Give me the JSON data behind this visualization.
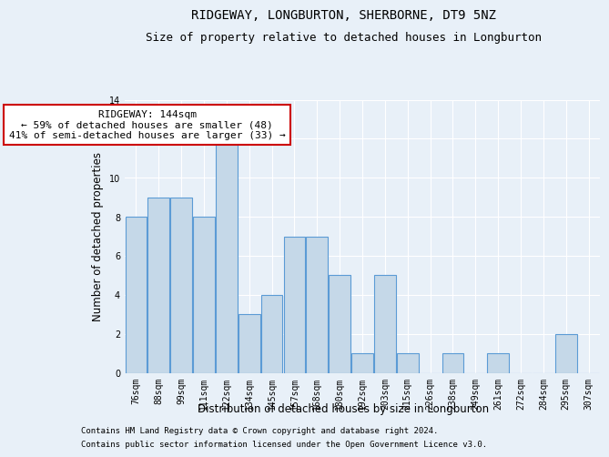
{
  "title": "RIDGEWAY, LONGBURTON, SHERBORNE, DT9 5NZ",
  "subtitle": "Size of property relative to detached houses in Longburton",
  "xlabel": "Distribution of detached houses by size in Longburton",
  "ylabel": "Number of detached properties",
  "footnote1": "Contains HM Land Registry data © Crown copyright and database right 2024.",
  "footnote2": "Contains public sector information licensed under the Open Government Licence v3.0.",
  "annotation_title": "RIDGEWAY: 144sqm",
  "annotation_line1": "← 59% of detached houses are smaller (48)",
  "annotation_line2": "41% of semi-detached houses are larger (33) →",
  "highlight_index": 5,
  "categories": [
    "76sqm",
    "88sqm",
    "99sqm",
    "111sqm",
    "122sqm",
    "134sqm",
    "145sqm",
    "157sqm",
    "168sqm",
    "180sqm",
    "192sqm",
    "203sqm",
    "215sqm",
    "226sqm",
    "238sqm",
    "249sqm",
    "261sqm",
    "272sqm",
    "284sqm",
    "295sqm",
    "307sqm"
  ],
  "values": [
    8,
    9,
    9,
    8,
    12,
    3,
    4,
    7,
    7,
    5,
    1,
    5,
    1,
    0,
    1,
    0,
    1,
    0,
    0,
    2,
    0
  ],
  "bar_color": "#c5d8e8",
  "bar_edge_color": "#5b9bd5",
  "ylim": [
    0,
    14
  ],
  "yticks": [
    0,
    2,
    4,
    6,
    8,
    10,
    12,
    14
  ],
  "background_color": "#e8f0f8",
  "plot_bg_color": "#e8f0f8",
  "grid_color": "#ffffff",
  "annotation_box_color": "#ffffff",
  "annotation_box_edge": "#cc0000",
  "title_fontsize": 10,
  "subtitle_fontsize": 9,
  "axis_label_fontsize": 8.5,
  "tick_fontsize": 7,
  "annotation_fontsize": 8,
  "footnote_fontsize": 6.5
}
